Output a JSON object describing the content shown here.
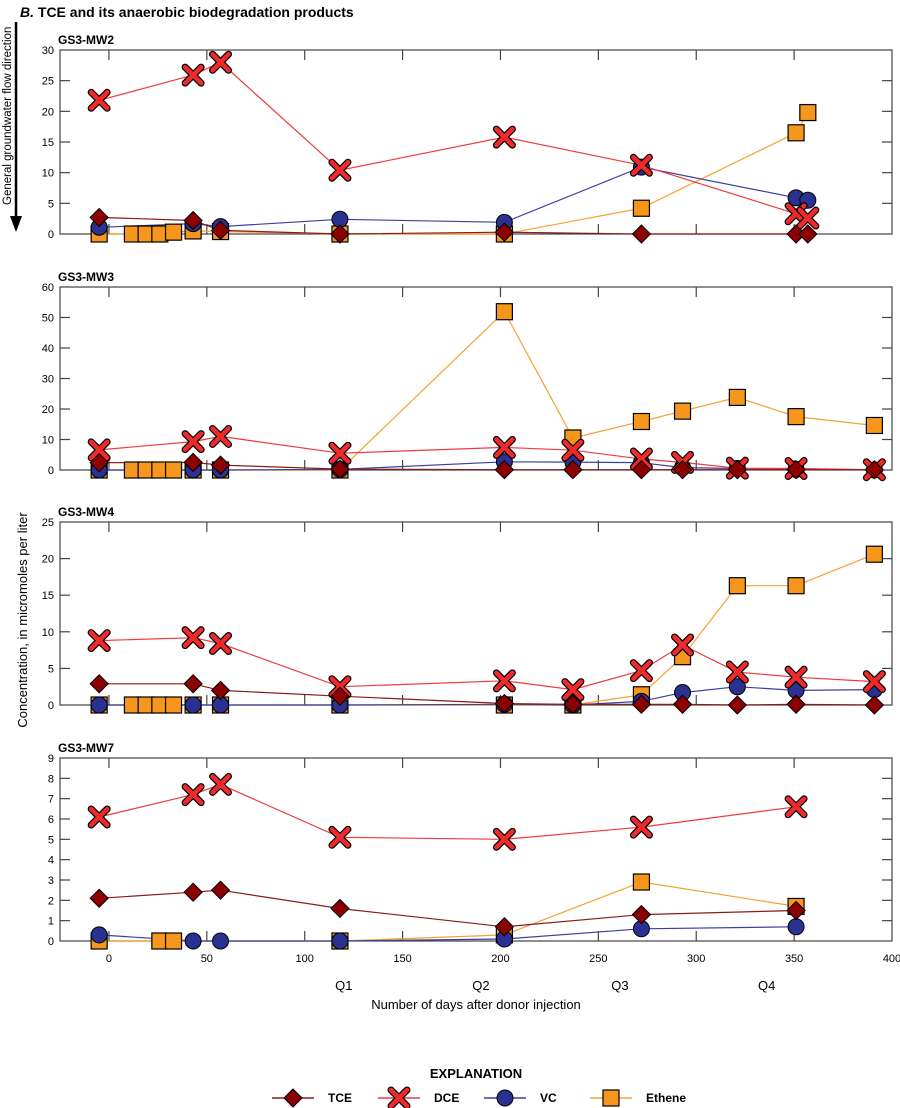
{
  "figure_title_prefix": "B.",
  "figure_title": " TCE and its anaerobic biodegradation products",
  "side_arrow_label": "General groundwater flow direction",
  "y_axis_label": "Concentration, in micromoles per liter",
  "x_axis_label": "Number of days after donor injection",
  "legend": {
    "title": "EXPLANATION",
    "items": [
      {
        "name": "TCE",
        "marker": "diamond",
        "fill": "#8b0000",
        "line": "#8b1a1a"
      },
      {
        "name": "DCE",
        "marker": "x",
        "fill": "#ee2a2a",
        "line": "#ee3b3b"
      },
      {
        "name": "VC",
        "marker": "circle",
        "fill": "#2b3190",
        "line": "#3b40a0"
      },
      {
        "name": "Ethene",
        "marker": "square",
        "fill": "#f7961d",
        "line": "#f7a030"
      }
    ]
  },
  "chart_data": [
    {
      "type": "line",
      "title": "GS3-MW2",
      "xlabel": "Number of days after donor injection",
      "ylabel": "Concentration, in micromoles per liter",
      "xlim": [
        -25,
        400
      ],
      "ylim": [
        0,
        30
      ],
      "yticks": [
        0,
        5,
        10,
        15,
        20,
        25,
        30
      ],
      "series": [
        {
          "name": "TCE",
          "x": [
            -5,
            43,
            57,
            118,
            202,
            272,
            351,
            357
          ],
          "values": [
            2.7,
            2.2,
            0.6,
            0.0,
            0.3,
            0.0,
            0.0,
            0.0
          ]
        },
        {
          "name": "DCE",
          "x": [
            -5,
            43,
            57,
            118,
            202,
            272,
            351,
            357
          ],
          "values": [
            21.8,
            25.9,
            28.0,
            10.4,
            15.8,
            11.2,
            3.3,
            2.6
          ]
        },
        {
          "name": "VC",
          "x": [
            -5,
            43,
            57,
            118,
            202,
            272,
            351,
            357
          ],
          "values": [
            1.1,
            1.7,
            1.2,
            2.4,
            1.9,
            10.9,
            5.9,
            5.5
          ]
        },
        {
          "name": "Ethene",
          "x": [
            -5,
            12,
            19,
            26,
            33,
            43,
            57,
            118,
            202,
            272,
            351,
            357
          ],
          "values": [
            0.0,
            0.0,
            0.0,
            0.0,
            0.3,
            0.5,
            0.4,
            0.0,
            0.0,
            4.2,
            16.5,
            19.8
          ]
        }
      ]
    },
    {
      "type": "line",
      "title": "GS3-MW3",
      "xlabel": "Number of days after donor injection",
      "ylabel": "Concentration, in micromoles per liter",
      "xlim": [
        -25,
        400
      ],
      "ylim": [
        0,
        60
      ],
      "yticks": [
        0,
        10,
        20,
        30,
        40,
        50,
        60
      ],
      "series": [
        {
          "name": "TCE",
          "x": [
            -5,
            43,
            57,
            118,
            202,
            237,
            272,
            293,
            321,
            351,
            391
          ],
          "values": [
            2.4,
            2.5,
            1.6,
            0.3,
            0.1,
            0.1,
            0.1,
            0.1,
            0.1,
            0.1,
            0.1
          ]
        },
        {
          "name": "DCE",
          "x": [
            -5,
            43,
            57,
            118,
            202,
            237,
            272,
            293,
            321,
            351,
            391
          ],
          "values": [
            6.6,
            9.3,
            11.0,
            5.5,
            7.4,
            6.5,
            3.6,
            2.5,
            0.6,
            0.5,
            0.1
          ]
        },
        {
          "name": "VC",
          "x": [
            -5,
            43,
            57,
            118,
            202,
            237,
            272,
            293,
            321,
            351,
            391
          ],
          "values": [
            0.0,
            0.0,
            0.0,
            0.2,
            2.7,
            2.6,
            2.4,
            0.8,
            0.5,
            0.2,
            0.0
          ]
        },
        {
          "name": "Ethene",
          "x": [
            -5,
            12,
            19,
            26,
            33,
            43,
            57,
            118,
            202,
            237,
            272,
            293,
            321,
            351,
            391
          ],
          "values": [
            0.0,
            0.0,
            0.0,
            0.0,
            0.0,
            0.0,
            0.0,
            0.0,
            51.9,
            10.5,
            15.9,
            19.3,
            23.8,
            17.5,
            14.6
          ]
        }
      ]
    },
    {
      "type": "line",
      "title": "GS3-MW4",
      "xlabel": "Number of days after donor injection",
      "ylabel": "Concentration, in micromoles per liter",
      "xlim": [
        -25,
        400
      ],
      "ylim": [
        0,
        25
      ],
      "yticks": [
        0,
        5,
        10,
        15,
        20,
        25
      ],
      "series": [
        {
          "name": "TCE",
          "x": [
            -5,
            43,
            57,
            118,
            202,
            237,
            272,
            293,
            321,
            351,
            391
          ],
          "values": [
            2.9,
            2.9,
            2.0,
            1.2,
            0.2,
            0.1,
            0.1,
            0.1,
            0.0,
            0.1,
            0.0
          ]
        },
        {
          "name": "DCE",
          "x": [
            -5,
            43,
            57,
            118,
            202,
            237,
            272,
            293,
            321,
            351,
            391
          ],
          "values": [
            8.8,
            9.2,
            8.4,
            2.5,
            3.3,
            2.1,
            4.7,
            8.2,
            4.5,
            3.8,
            3.2
          ]
        },
        {
          "name": "VC",
          "x": [
            -5,
            43,
            57,
            118,
            202,
            237,
            272,
            293,
            321,
            351,
            391
          ],
          "values": [
            0.0,
            0.0,
            0.0,
            0.0,
            0.1,
            0.0,
            0.5,
            1.7,
            2.5,
            2.0,
            2.1
          ]
        },
        {
          "name": "Ethene",
          "x": [
            -5,
            12,
            19,
            26,
            33,
            43,
            57,
            118,
            202,
            237,
            272,
            293,
            321,
            351,
            391
          ],
          "values": [
            0.0,
            0.0,
            0.0,
            0.0,
            0.0,
            0.0,
            0.0,
            0.0,
            0.0,
            0.0,
            1.4,
            6.6,
            16.3,
            16.3,
            20.6
          ]
        }
      ]
    },
    {
      "type": "line",
      "title": "GS3-MW7",
      "xlabel": "Number of days after donor injection",
      "ylabel": "Concentration, in micromoles per liter",
      "xlim": [
        -25,
        400
      ],
      "ylim": [
        0,
        9
      ],
      "yticks": [
        0,
        1,
        2,
        3,
        4,
        5,
        6,
        7,
        8,
        9
      ],
      "series": [
        {
          "name": "TCE",
          "x": [
            -5,
            43,
            57,
            118,
            202,
            272,
            351
          ],
          "values": [
            2.1,
            2.4,
            2.5,
            1.6,
            0.7,
            1.3,
            1.5
          ]
        },
        {
          "name": "DCE",
          "x": [
            -5,
            43,
            57,
            118,
            202,
            272,
            351
          ],
          "values": [
            6.1,
            7.2,
            7.7,
            5.1,
            5.0,
            5.6,
            6.6
          ]
        },
        {
          "name": "VC",
          "x": [
            -5,
            43,
            57,
            118,
            202,
            272,
            351
          ],
          "values": [
            0.3,
            0.0,
            0.0,
            0.0,
            0.1,
            0.6,
            0.7
          ]
        },
        {
          "name": "Ethene",
          "x": [
            -5,
            26,
            33,
            118,
            202,
            272,
            351
          ],
          "values": [
            0.0,
            0.0,
            0.0,
            0.0,
            0.3,
            2.9,
            1.7
          ]
        }
      ]
    }
  ],
  "x_axis": {
    "ticks": [
      0,
      50,
      100,
      150,
      200,
      250,
      300,
      350,
      400
    ],
    "quarters": [
      {
        "label": "Q1",
        "day": 120
      },
      {
        "label": "Q2",
        "day": 190
      },
      {
        "label": "Q3",
        "day": 261
      },
      {
        "label": "Q4",
        "day": 336
      }
    ]
  }
}
